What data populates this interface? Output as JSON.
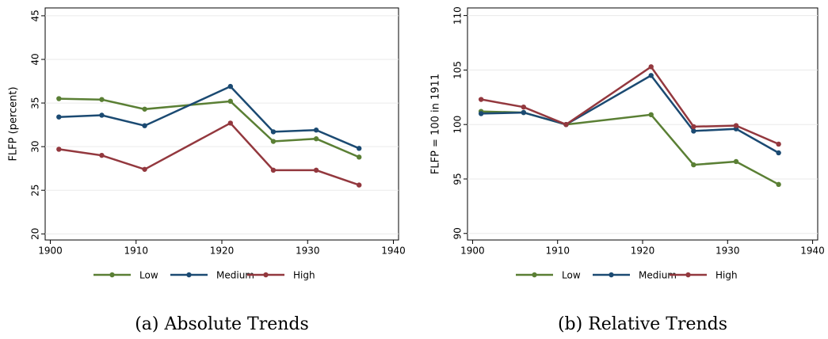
{
  "chart_data": [
    {
      "type": "line",
      "caption": "(a) Absolute Trends",
      "ylabel": "FLFP (percent)",
      "x": [
        1901,
        1906,
        1911,
        1921,
        1926,
        1931,
        1936
      ],
      "xlim": [
        1899.4,
        1940.6
      ],
      "xticks": [
        1900,
        1910,
        1920,
        1930,
        1940
      ],
      "ylim": [
        19.3,
        45.9
      ],
      "yticks": [
        20,
        25,
        30,
        35,
        40,
        45
      ],
      "grid": true,
      "legend": "bottom",
      "series": [
        {
          "name": "Low",
          "color": "#5a7f34",
          "values": [
            35.5,
            35.4,
            34.3,
            35.2,
            30.6,
            30.9,
            28.8
          ]
        },
        {
          "name": "Medium",
          "color": "#1b4a72",
          "values": [
            33.4,
            33.6,
            32.4,
            36.9,
            31.7,
            31.9,
            29.8
          ]
        },
        {
          "name": "High",
          "color": "#93383e",
          "values": [
            29.7,
            29.0,
            27.4,
            32.7,
            27.3,
            27.3,
            25.6
          ]
        }
      ]
    },
    {
      "type": "line",
      "caption": "(b) Relative Trends",
      "ylabel": "FLFP = 100 in 1911",
      "x": [
        1901,
        1906,
        1911,
        1921,
        1926,
        1931,
        1936
      ],
      "xlim": [
        1899.4,
        1940.6
      ],
      "xticks": [
        1900,
        1910,
        1920,
        1930,
        1940
      ],
      "ylim": [
        89.4,
        110.7
      ],
      "yticks": [
        90,
        95,
        100,
        105,
        110
      ],
      "grid": true,
      "legend": "bottom",
      "series": [
        {
          "name": "Low",
          "color": "#5a7f34",
          "values": [
            101.2,
            101.1,
            100,
            100.9,
            96.3,
            96.6,
            94.5
          ]
        },
        {
          "name": "Medium",
          "color": "#1b4a72",
          "values": [
            101.0,
            101.1,
            100,
            104.5,
            99.4,
            99.6,
            97.4
          ]
        },
        {
          "name": "High",
          "color": "#93383e",
          "values": [
            102.3,
            101.6,
            100,
            105.3,
            99.8,
            99.9,
            98.2
          ]
        }
      ]
    }
  ]
}
